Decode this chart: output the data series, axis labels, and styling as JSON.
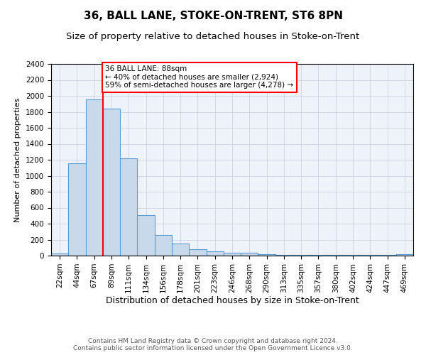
{
  "title": "36, BALL LANE, STOKE-ON-TRENT, ST6 8PN",
  "subtitle": "Size of property relative to detached houses in Stoke-on-Trent",
  "xlabel": "Distribution of detached houses by size in Stoke-on-Trent",
  "ylabel": "Number of detached properties",
  "bin_labels": [
    "22sqm",
    "44sqm",
    "67sqm",
    "89sqm",
    "111sqm",
    "134sqm",
    "156sqm",
    "178sqm",
    "201sqm",
    "223sqm",
    "246sqm",
    "268sqm",
    "290sqm",
    "313sqm",
    "335sqm",
    "357sqm",
    "380sqm",
    "402sqm",
    "424sqm",
    "447sqm",
    "469sqm"
  ],
  "bar_values": [
    25,
    1155,
    1955,
    1840,
    1220,
    510,
    260,
    155,
    80,
    55,
    35,
    35,
    20,
    10,
    10,
    10,
    10,
    5,
    5,
    5,
    15
  ],
  "bar_color": "#c8d9ec",
  "bar_edge_color": "#5a9fd4",
  "property_line_label": "36 BALL LANE: 88sqm",
  "annotation_line1": "← 40% of detached houses are smaller (2,924)",
  "annotation_line2": "59% of semi-detached houses are larger (4,278) →",
  "annotation_box_color": "white",
  "annotation_box_edge_color": "red",
  "vline_color": "red",
  "vline_x": 2.5,
  "ylim": [
    0,
    2400
  ],
  "yticks": [
    0,
    200,
    400,
    600,
    800,
    1000,
    1200,
    1400,
    1600,
    1800,
    2000,
    2200,
    2400
  ],
  "grid_color": "#d0d8e8",
  "bg_color": "#eef2f9",
  "footer_line1": "Contains HM Land Registry data © Crown copyright and database right 2024.",
  "footer_line2": "Contains public sector information licensed under the Open Government Licence v3.0.",
  "title_fontsize": 11,
  "subtitle_fontsize": 9.5,
  "xlabel_fontsize": 9,
  "ylabel_fontsize": 8,
  "tick_fontsize": 7.5,
  "footer_fontsize": 6.5
}
